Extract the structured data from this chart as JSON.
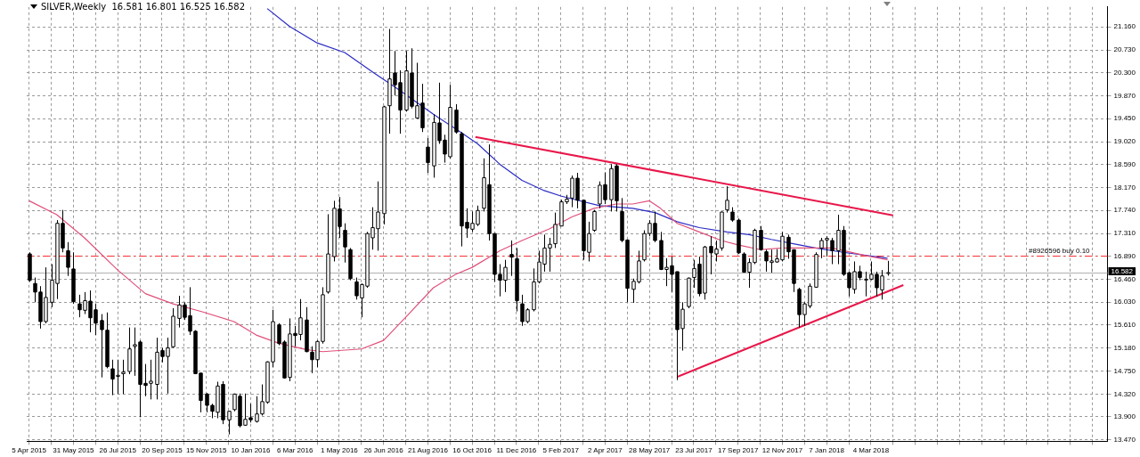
{
  "chart_data": {
    "type": "candlestick",
    "title": "SILVER,Weekly  16.581 16.801 16.525 16.582",
    "color": "#000000",
    "x": [
      "2015-04-05",
      "2015-04-12",
      "2015-04-19",
      "2015-04-26",
      "2015-05-03",
      "2015-05-10",
      "2015-05-17",
      "2015-05-24",
      "2015-05-31",
      "2015-06-07",
      "2015-06-14",
      "2015-06-21",
      "2015-06-28",
      "2015-07-05",
      "2015-07-12",
      "2015-07-19",
      "2015-07-26",
      "2015-08-02",
      "2015-08-09",
      "2015-08-16",
      "2015-08-23",
      "2015-08-30",
      "2015-09-06",
      "2015-09-13",
      "2015-09-20",
      "2015-09-27",
      "2015-10-04",
      "2015-10-11",
      "2015-10-18",
      "2015-10-25",
      "2015-11-01",
      "2015-11-08",
      "2015-11-15",
      "2015-11-22",
      "2015-11-29",
      "2015-12-06",
      "2015-12-13",
      "2015-12-20",
      "2015-12-27",
      "2016-01-03",
      "2016-01-10",
      "2016-01-17",
      "2016-01-24",
      "2016-01-31",
      "2016-02-07",
      "2016-02-14",
      "2016-02-21",
      "2016-02-28",
      "2016-03-06",
      "2016-03-13",
      "2016-03-20",
      "2016-03-27",
      "2016-04-03",
      "2016-04-10",
      "2016-04-17",
      "2016-04-24",
      "2016-05-01",
      "2016-05-08",
      "2016-05-15",
      "2016-05-22",
      "2016-05-29",
      "2016-06-05",
      "2016-06-12",
      "2016-06-19",
      "2016-06-26",
      "2016-07-03",
      "2016-07-10",
      "2016-07-17",
      "2016-07-24",
      "2016-07-31",
      "2016-08-07",
      "2016-08-14",
      "2016-08-21",
      "2016-08-28",
      "2016-09-04",
      "2016-09-11",
      "2016-09-18",
      "2016-09-25",
      "2016-10-02",
      "2016-10-09",
      "2016-10-16",
      "2016-10-23",
      "2016-10-30",
      "2016-11-06",
      "2016-11-13",
      "2016-11-20",
      "2016-11-27",
      "2016-12-04",
      "2016-12-11",
      "2016-12-18",
      "2016-12-25",
      "2017-01-01",
      "2017-01-08",
      "2017-01-15",
      "2017-01-22",
      "2017-01-29",
      "2017-02-05",
      "2017-02-12",
      "2017-02-19",
      "2017-02-26",
      "2017-03-05",
      "2017-03-12",
      "2017-03-19",
      "2017-03-26",
      "2017-04-02",
      "2017-04-09",
      "2017-04-16",
      "2017-04-23",
      "2017-04-30",
      "2017-05-07",
      "2017-05-14",
      "2017-05-21",
      "2017-05-28",
      "2017-06-04",
      "2017-06-11",
      "2017-06-18",
      "2017-06-25",
      "2017-07-02",
      "2017-07-09",
      "2017-07-16",
      "2017-07-23",
      "2017-07-30",
      "2017-08-06",
      "2017-08-13",
      "2017-08-20",
      "2017-08-27",
      "2017-09-03",
      "2017-09-10",
      "2017-09-17",
      "2017-09-24",
      "2017-10-01",
      "2017-10-08",
      "2017-10-15",
      "2017-10-22",
      "2017-10-29",
      "2017-11-05",
      "2017-11-12",
      "2017-11-19",
      "2017-11-26",
      "2017-12-03",
      "2017-12-10",
      "2017-12-17",
      "2017-12-24",
      "2017-12-31",
      "2018-01-07",
      "2018-01-14",
      "2018-01-21",
      "2018-01-28",
      "2018-02-04",
      "2018-02-11",
      "2018-02-18",
      "2018-02-25",
      "2018-03-04",
      "2018-03-11",
      "2018-03-18",
      "2018-03-25"
    ],
    "ohlc": [
      [
        16.93,
        16.96,
        16.41,
        16.44
      ],
      [
        16.38,
        16.49,
        16.03,
        16.22
      ],
      [
        16.22,
        16.33,
        15.54,
        15.67
      ],
      [
        15.67,
        16.68,
        15.64,
        16.12
      ],
      [
        16.03,
        16.74,
        15.94,
        16.44
      ],
      [
        16.38,
        17.56,
        16.09,
        17.5
      ],
      [
        17.5,
        17.75,
        16.96,
        17.04
      ],
      [
        16.99,
        17.15,
        16.52,
        16.68
      ],
      [
        16.65,
        16.96,
        16.0,
        16.04
      ],
      [
        16.0,
        16.17,
        15.75,
        15.89
      ],
      [
        15.88,
        16.22,
        15.81,
        16.06
      ],
      [
        16.05,
        16.25,
        15.47,
        15.74
      ],
      [
        15.89,
        16.0,
        15.42,
        15.64
      ],
      [
        15.69,
        15.81,
        14.63,
        15.52
      ],
      [
        15.51,
        15.84,
        14.8,
        14.83
      ],
      [
        14.79,
        14.96,
        14.3,
        14.6
      ],
      [
        14.65,
        14.96,
        14.32,
        14.67
      ],
      [
        14.7,
        14.96,
        14.32,
        14.73
      ],
      [
        14.74,
        15.56,
        14.69,
        15.16
      ],
      [
        15.21,
        15.56,
        14.66,
        15.24
      ],
      [
        15.29,
        15.32,
        13.89,
        14.5
      ],
      [
        14.52,
        14.88,
        14.28,
        14.48
      ],
      [
        14.52,
        14.96,
        14.22,
        14.56
      ],
      [
        14.5,
        15.37,
        14.22,
        15.1
      ],
      [
        15.13,
        15.18,
        14.91,
        15.02
      ],
      [
        15.02,
        15.37,
        14.33,
        15.18
      ],
      [
        15.2,
        15.92,
        15.18,
        15.77
      ],
      [
        15.73,
        16.15,
        15.56,
        15.98
      ],
      [
        15.98,
        16.03,
        15.7,
        15.75
      ],
      [
        15.78,
        16.31,
        15.42,
        15.49
      ],
      [
        15.49,
        15.51,
        14.69,
        14.7
      ],
      [
        14.71,
        14.71,
        13.98,
        14.2
      ],
      [
        14.32,
        14.34,
        13.98,
        14.11
      ],
      [
        14.11,
        14.14,
        13.87,
        14.0
      ],
      [
        13.98,
        14.55,
        13.87,
        14.47
      ],
      [
        14.5,
        14.56,
        13.76,
        13.84
      ],
      [
        13.84,
        14.0,
        13.57,
        14.0
      ],
      [
        14.03,
        14.33,
        14.0,
        14.32
      ],
      [
        14.28,
        14.33,
        13.7,
        13.73
      ],
      [
        13.74,
        14.33,
        13.73,
        13.85
      ],
      [
        13.88,
        14.14,
        13.79,
        13.84
      ],
      [
        13.81,
        14.28,
        13.79,
        13.95
      ],
      [
        13.95,
        14.5,
        13.92,
        14.18
      ],
      [
        14.17,
        14.93,
        14.14,
        14.92
      ],
      [
        14.92,
        15.89,
        14.82,
        15.67
      ],
      [
        15.61,
        15.64,
        15.23,
        15.26
      ],
      [
        15.29,
        15.32,
        14.61,
        14.62
      ],
      [
        14.63,
        15.73,
        14.56,
        15.44
      ],
      [
        15.45,
        15.59,
        15.21,
        15.41
      ],
      [
        15.43,
        16.09,
        15.32,
        15.74
      ],
      [
        15.7,
        15.94,
        15.1,
        15.11
      ],
      [
        15.1,
        15.21,
        14.71,
        14.96
      ],
      [
        14.96,
        15.32,
        14.82,
        15.3
      ],
      [
        15.3,
        16.31,
        15.26,
        16.17
      ],
      [
        16.22,
        17.67,
        16.19,
        16.93
      ],
      [
        16.88,
        17.92,
        16.79,
        17.78
      ],
      [
        17.77,
        17.99,
        17.23,
        17.44
      ],
      [
        17.37,
        17.5,
        16.77,
        17.06
      ],
      [
        17.01,
        17.04,
        16.44,
        16.47
      ],
      [
        16.41,
        16.49,
        16.08,
        16.15
      ],
      [
        16.11,
        16.38,
        15.75,
        16.36
      ],
      [
        16.33,
        17.34,
        16.3,
        17.31
      ],
      [
        17.23,
        17.8,
        17.01,
        17.42
      ],
      [
        17.4,
        18.28,
        16.99,
        17.71
      ],
      [
        17.68,
        19.69,
        17.48,
        19.67
      ],
      [
        19.69,
        21.12,
        19.17,
        20.19
      ],
      [
        20.3,
        20.71,
        19.88,
        20.08
      ],
      [
        20.12,
        20.35,
        19.17,
        19.61
      ],
      [
        19.61,
        20.71,
        19.58,
        20.34
      ],
      [
        20.3,
        20.76,
        19.64,
        19.68
      ],
      [
        19.46,
        20.49,
        19.45,
        19.69
      ],
      [
        19.74,
        20.1,
        19.2,
        19.28
      ],
      [
        18.92,
        19.09,
        18.44,
        18.63
      ],
      [
        18.57,
        19.53,
        18.35,
        19.38
      ],
      [
        19.37,
        20.12,
        18.98,
        19.04
      ],
      [
        19.05,
        19.15,
        18.63,
        18.79
      ],
      [
        18.74,
        20.08,
        18.71,
        19.66
      ],
      [
        19.61,
        19.72,
        19.17,
        19.2
      ],
      [
        19.17,
        19.2,
        17.07,
        17.45
      ],
      [
        17.52,
        17.78,
        17.23,
        17.41
      ],
      [
        17.39,
        17.72,
        17.34,
        17.5
      ],
      [
        17.48,
        17.83,
        17.45,
        17.74
      ],
      [
        17.78,
        18.71,
        17.72,
        18.35
      ],
      [
        18.22,
        18.97,
        17.18,
        17.31
      ],
      [
        17.31,
        17.31,
        16.41,
        16.55
      ],
      [
        16.55,
        16.74,
        16.14,
        16.44
      ],
      [
        16.44,
        16.82,
        16.22,
        16.68
      ],
      [
        16.92,
        17.18,
        16.52,
        16.87
      ],
      [
        16.84,
        17.04,
        15.86,
        16.06
      ],
      [
        16.0,
        16.17,
        15.59,
        15.67
      ],
      [
        15.67,
        15.92,
        15.64,
        15.89
      ],
      [
        15.89,
        16.66,
        15.86,
        16.41
      ],
      [
        16.41,
        16.99,
        16.38,
        16.78
      ],
      [
        16.74,
        17.29,
        16.6,
        17.04
      ],
      [
        17.04,
        17.23,
        16.6,
        17.11
      ],
      [
        17.12,
        17.7,
        17.04,
        17.48
      ],
      [
        17.45,
        17.94,
        17.45,
        17.9
      ],
      [
        17.9,
        18.03,
        17.86,
        17.95
      ],
      [
        17.97,
        18.39,
        17.8,
        18.34
      ],
      [
        18.34,
        18.44,
        17.78,
        17.93
      ],
      [
        17.93,
        17.94,
        16.82,
        16.99
      ],
      [
        16.96,
        17.53,
        16.79,
        17.31
      ],
      [
        17.37,
        17.75,
        17.34,
        17.72
      ],
      [
        17.86,
        18.28,
        17.78,
        18.21
      ],
      [
        18.22,
        18.45,
        17.86,
        17.94
      ],
      [
        17.94,
        18.6,
        17.72,
        18.52
      ],
      [
        18.57,
        18.6,
        17.72,
        17.92
      ],
      [
        17.72,
        17.97,
        17.15,
        17.18
      ],
      [
        17.19,
        17.2,
        16.03,
        16.29
      ],
      [
        16.27,
        16.47,
        16.02,
        16.42
      ],
      [
        16.41,
        16.99,
        16.38,
        16.8
      ],
      [
        16.82,
        17.37,
        16.79,
        17.31
      ],
      [
        17.31,
        17.56,
        17.26,
        17.5
      ],
      [
        17.5,
        17.72,
        17.15,
        17.18
      ],
      [
        17.18,
        17.34,
        16.63,
        16.64
      ],
      [
        16.64,
        16.85,
        16.33,
        16.68
      ],
      [
        16.71,
        16.88,
        16.22,
        16.55
      ],
      [
        16.6,
        16.6,
        14.58,
        15.52
      ],
      [
        15.54,
        16.03,
        15.13,
        15.9
      ],
      [
        15.95,
        16.49,
        15.92,
        16.48
      ],
      [
        16.49,
        16.82,
        16.3,
        16.66
      ],
      [
        16.74,
        16.88,
        16.14,
        16.19
      ],
      [
        16.2,
        17.08,
        16.08,
        17.06
      ],
      [
        17.07,
        17.26,
        16.55,
        16.95
      ],
      [
        16.93,
        17.18,
        16.79,
        17.02
      ],
      [
        17.04,
        17.72,
        16.99,
        17.71
      ],
      [
        17.75,
        18.19,
        17.7,
        17.93
      ],
      [
        17.71,
        17.8,
        17.53,
        17.56
      ],
      [
        17.56,
        17.59,
        16.93,
        16.95
      ],
      [
        16.93,
        16.96,
        16.58,
        16.59
      ],
      [
        16.59,
        16.85,
        16.3,
        16.77
      ],
      [
        16.77,
        17.4,
        16.74,
        17.37
      ],
      [
        17.37,
        17.45,
        16.99,
        17.01
      ],
      [
        16.97,
        17.01,
        16.6,
        16.8
      ],
      [
        16.77,
        17.01,
        16.58,
        16.8
      ],
      [
        16.78,
        17.02,
        16.77,
        16.84
      ],
      [
        16.82,
        17.34,
        16.79,
        17.26
      ],
      [
        17.24,
        17.29,
        16.84,
        16.97
      ],
      [
        17.01,
        17.01,
        16.22,
        16.38
      ],
      [
        16.27,
        16.3,
        15.56,
        15.8
      ],
      [
        15.8,
        16.03,
        15.59,
        16.0
      ],
      [
        15.96,
        16.38,
        15.92,
        16.33
      ],
      [
        16.31,
        16.96,
        16.3,
        16.92
      ],
      [
        17.04,
        17.23,
        16.85,
        17.18
      ],
      [
        17.19,
        17.26,
        16.88,
        17.22
      ],
      [
        17.18,
        17.23,
        16.74,
        16.99
      ],
      [
        16.99,
        17.66,
        16.74,
        17.37
      ],
      [
        17.37,
        17.45,
        16.52,
        16.55
      ],
      [
        16.58,
        16.6,
        16.14,
        16.3
      ],
      [
        16.27,
        16.79,
        16.19,
        16.6
      ],
      [
        16.6,
        16.71,
        16.44,
        16.49
      ],
      [
        16.45,
        16.6,
        16.14,
        16.46
      ],
      [
        16.46,
        16.79,
        16.44,
        16.55
      ],
      [
        16.55,
        16.6,
        16.14,
        16.3
      ],
      [
        16.26,
        16.63,
        16.08,
        16.52
      ],
      [
        16.581,
        16.801,
        16.525,
        16.582
      ]
    ],
    "series": [
      {
        "type": "line",
        "color": "#e0507a",
        "x": [
          "2015-04-05",
          "2015-05-10",
          "2015-06-14",
          "2015-07-26",
          "2015-08-30",
          "2015-10-04",
          "2015-11-08",
          "2015-12-20",
          "2016-01-17",
          "2016-02-14",
          "2016-03-20",
          "2016-04-10",
          "2016-05-29",
          "2016-06-26",
          "2016-07-24",
          "2016-08-28",
          "2016-09-25",
          "2016-10-16",
          "2016-11-20",
          "2016-12-18",
          "2017-01-22",
          "2017-02-19",
          "2017-03-19",
          "2017-04-16",
          "2017-05-07",
          "2017-05-28",
          "2017-06-11",
          "2017-07-02",
          "2017-07-30",
          "2017-08-27",
          "2017-09-17",
          "2017-10-15",
          "2017-11-12",
          "2017-12-10",
          "2018-01-14",
          "2018-02-04",
          "2018-02-25",
          "2018-03-25"
        ],
        "values": [
          17.92,
          17.66,
          17.23,
          16.63,
          16.19,
          16.0,
          15.86,
          15.67,
          15.42,
          15.27,
          15.15,
          15.11,
          15.16,
          15.32,
          15.75,
          16.3,
          16.55,
          16.68,
          16.99,
          17.18,
          17.4,
          17.62,
          17.78,
          17.86,
          17.86,
          17.92,
          17.78,
          17.5,
          17.34,
          17.18,
          17.1,
          17.01,
          17.04,
          17.04,
          17.04,
          16.97,
          16.9,
          16.82
        ]
      },
      {
        "type": "line",
        "color": "#2b2bc4",
        "x": [
          "2016-01-31",
          "2016-02-28",
          "2016-04-03",
          "2016-05-08",
          "2016-06-12",
          "2016-07-17",
          "2016-08-28",
          "2016-09-25",
          "2016-10-23",
          "2016-11-20",
          "2016-12-18",
          "2017-01-15",
          "2017-02-05",
          "2017-02-26",
          "2017-03-26",
          "2017-05-07",
          "2017-06-04",
          "2017-07-02",
          "2017-07-30",
          "2017-09-03",
          "2017-10-01",
          "2017-10-29",
          "2017-11-26",
          "2017-12-24",
          "2018-01-28",
          "2018-03-25"
        ],
        "values": [
          21.5,
          21.17,
          20.86,
          20.68,
          20.32,
          19.97,
          19.53,
          19.26,
          18.98,
          18.6,
          18.3,
          18.11,
          18.01,
          17.93,
          17.83,
          17.78,
          17.7,
          17.53,
          17.42,
          17.34,
          17.29,
          17.2,
          17.12,
          17.04,
          16.96,
          16.85
        ]
      },
      {
        "type": "line",
        "color": "#e8174a",
        "x": [
          "2016-10-20",
          "2018-04-01"
        ],
        "values": [
          19.11,
          17.65
        ]
      },
      {
        "type": "line",
        "color": "#e8174a",
        "x": [
          "2017-07-02",
          "2018-04-14"
        ],
        "values": [
          14.64,
          16.35
        ]
      }
    ],
    "ref_lines": [
      {
        "axis": "y",
        "value": 16.89,
        "label": "#8926596 buy 0.10",
        "color": "#ff3030",
        "line_style": "dashed"
      },
      {
        "axis": "y",
        "value": 16.582,
        "label": "16.582",
        "color": "#b0b0b0",
        "line_style": "solid"
      }
    ],
    "xlim": [
      "2015-04-02",
      "2018-12-28"
    ],
    "xticks": [
      {
        "value": "2015-04-05",
        "label": "5 Apr 2015"
      },
      {
        "value": "2015-05-03",
        "label": null
      },
      {
        "value": "2015-05-31",
        "label": "31 May 2015"
      },
      {
        "value": "2015-06-28",
        "label": null
      },
      {
        "value": "2015-07-26",
        "label": "26 Jul 2015"
      },
      {
        "value": "2015-08-23",
        "label": null
      },
      {
        "value": "2015-09-20",
        "label": "20 Sep 2015"
      },
      {
        "value": "2015-10-18",
        "label": null
      },
      {
        "value": "2015-11-15",
        "label": "15 Nov 2015"
      },
      {
        "value": "2015-12-13",
        "label": null
      },
      {
        "value": "2016-01-10",
        "label": "10 Jan 2016"
      },
      {
        "value": "2016-02-07",
        "label": null
      },
      {
        "value": "2016-03-06",
        "label": "6 Mar 2016"
      },
      {
        "value": "2016-04-03",
        "label": null
      },
      {
        "value": "2016-05-01",
        "label": "1 May 2016"
      },
      {
        "value": "2016-05-29",
        "label": null
      },
      {
        "value": "2016-06-26",
        "label": "26 Jun 2016"
      },
      {
        "value": "2016-07-24",
        "label": null
      },
      {
        "value": "2016-08-21",
        "label": "21 Aug 2016"
      },
      {
        "value": "2016-09-18",
        "label": null
      },
      {
        "value": "2016-10-16",
        "label": "16 Oct 2016"
      },
      {
        "value": "2016-11-13",
        "label": null
      },
      {
        "value": "2016-12-11",
        "label": "11 Dec 2016"
      },
      {
        "value": "2017-01-08",
        "label": null
      },
      {
        "value": "2017-02-05",
        "label": "5 Feb 2017"
      },
      {
        "value": "2017-03-05",
        "label": null
      },
      {
        "value": "2017-04-02",
        "label": "2 Apr 2017"
      },
      {
        "value": "2017-04-30",
        "label": null
      },
      {
        "value": "2017-05-28",
        "label": "28 May 2017"
      },
      {
        "value": "2017-06-25",
        "label": null
      },
      {
        "value": "2017-07-23",
        "label": "23 Jul 2017"
      },
      {
        "value": "2017-08-20",
        "label": null
      },
      {
        "value": "2017-09-17",
        "label": "17 Sep 2017"
      },
      {
        "value": "2017-10-15",
        "label": null
      },
      {
        "value": "2017-11-12",
        "label": "12 Nov 2017"
      },
      {
        "value": "2017-12-10",
        "label": null
      },
      {
        "value": "2018-01-07",
        "label": "7 Jan 2018"
      },
      {
        "value": "2018-02-04",
        "label": null
      },
      {
        "value": "2018-03-04",
        "label": "4 Mar 2018"
      },
      {
        "value": "2018-04-01",
        "label": null
      },
      {
        "value": "2018-04-29",
        "label": null
      },
      {
        "value": "2018-05-27",
        "label": null
      },
      {
        "value": "2018-06-24",
        "label": null
      },
      {
        "value": "2018-07-22",
        "label": null
      },
      {
        "value": "2018-08-19",
        "label": null
      },
      {
        "value": "2018-09-16",
        "label": null
      },
      {
        "value": "2018-10-14",
        "label": null
      },
      {
        "value": "2018-11-11",
        "label": null
      },
      {
        "value": "2018-12-09",
        "label": null
      }
    ],
    "ylim": [
      13.44,
      21.53
    ],
    "yticks": [
      {
        "value": 13.47,
        "label": "13.470"
      },
      {
        "value": 13.9,
        "label": "13.900"
      },
      {
        "value": 14.32,
        "label": "14.320"
      },
      {
        "value": 14.75,
        "label": "14.750"
      },
      {
        "value": 15.18,
        "label": "15.180"
      },
      {
        "value": 15.61,
        "label": "15.610"
      },
      {
        "value": 16.03,
        "label": "16.030"
      },
      {
        "value": 16.46,
        "label": "16.460"
      },
      {
        "value": 16.89,
        "label": "16.890"
      },
      {
        "value": 17.31,
        "label": "17.310"
      },
      {
        "value": 17.74,
        "label": "17.740"
      },
      {
        "value": 18.17,
        "label": "18.170"
      },
      {
        "value": 18.59,
        "label": "18.590"
      },
      {
        "value": 19.02,
        "label": "19.020"
      },
      {
        "value": 19.45,
        "label": "19.450"
      },
      {
        "value": 19.87,
        "label": "19.870"
      },
      {
        "value": 20.3,
        "label": "20.300"
      },
      {
        "value": 20.73,
        "label": "20.730"
      },
      {
        "value": 21.16,
        "label": "21.160"
      }
    ],
    "grid": true
  }
}
